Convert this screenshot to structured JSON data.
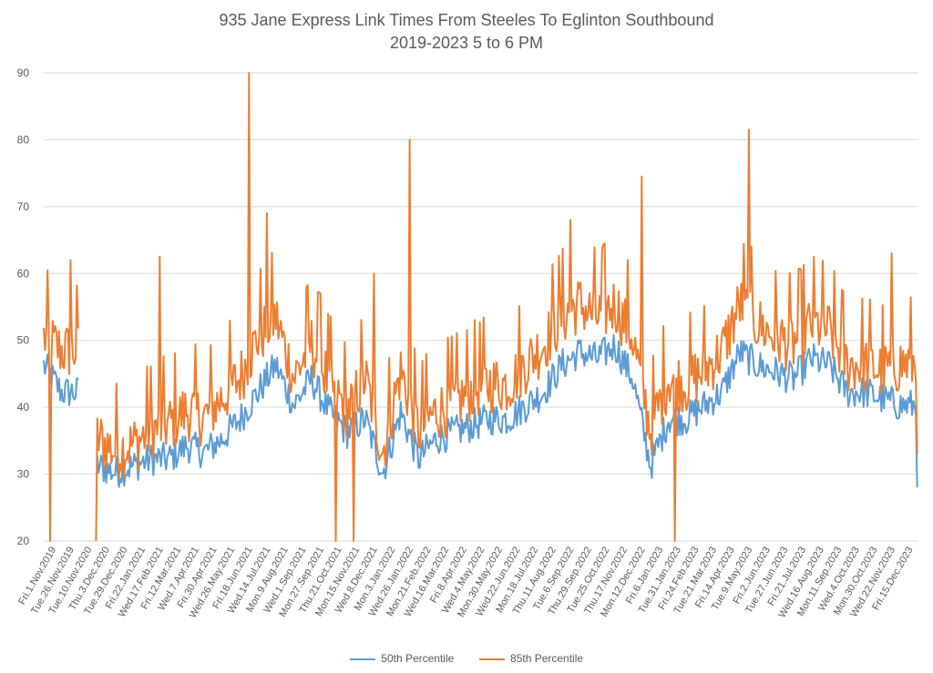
{
  "chart_data": {
    "type": "line",
    "title": "935 Jane Express Link Times From Steeles To Eglinton Southbound",
    "subtitle": "2019-2023 5 to 6 PM",
    "xlabel": "",
    "ylabel": "",
    "ylim": [
      20,
      90
    ],
    "yticks": [
      20,
      30,
      40,
      50,
      60,
      70,
      80,
      90
    ],
    "grid": true,
    "legend_position": "bottom",
    "x_tick_labels": [
      "Fri.1.Nov.2019",
      "Tue.26.Nov.2019",
      "Tue.10.Nov.2020",
      "Thu.3.Dec.2020",
      "Tue.29.Dec.2020",
      "Fri.22.Jan.2021",
      "Wed.17.Feb.2021",
      "Fri.12.Mar.2021",
      "Wed.7.Apr.2021",
      "Fri.30.Apr.2021",
      "Wed.26.May.2021",
      "Fri.18.Jun.2021",
      "Wed.14.Jul.2021",
      "Mon.9.Aug.2021",
      "Wed.1.Sep.2021",
      "Mon.27.Sep.2021",
      "Thu.21.Oct.2021",
      "Mon.15.Nov.2021",
      "Wed.8.Dec.2021",
      "Mon.3.Jan.2022",
      "Wed.26.Jan.2022",
      "Mon.21.Feb.2022",
      "Wed.16.Mar.2022",
      "Fri.8.Apr.2022",
      "Wed.4.May.2022",
      "Mon.30.May.2022",
      "Wed.22.Jun.2022",
      "Mon.18.Jul.2022",
      "Thu.11.Aug.2022",
      "Tue.6.Sep.2022",
      "Thu.29.Sep.2022",
      "Tue.25.Oct.2022",
      "Thu.17.Nov.2022",
      "Mon.12.Dec.2022",
      "Fri.6.Jan.2023",
      "Tue.31.Jan.2023",
      "Fri.24.Feb.2023",
      "Tue.21.Mar.2023",
      "Fri.14.Apr.2023",
      "Tue.9.May.2023",
      "Fri.2.Jun.2023",
      "Tue.27.Jun.2023",
      "Fri.21.Jul.2023",
      "Wed.16.Aug.2023",
      "Mon.11.Sep.2023",
      "Wed.4.Oct.2023",
      "Mon.30.Oct.2023",
      "Wed.22.Nov.2023",
      "Fri.15.Dec.2023"
    ],
    "series": [
      {
        "name": "50th Percentile",
        "color": "#5B9BD5",
        "anchor_values_per_tick": [
          46,
          42,
          null,
          31,
          30,
          31,
          32,
          32,
          34,
          33,
          35,
          38,
          42,
          46,
          40,
          44,
          39,
          36,
          38,
          30,
          39,
          32,
          35,
          36,
          37,
          38,
          38,
          40,
          42,
          46,
          48,
          47,
          49,
          44,
          31,
          38,
          38,
          40,
          42,
          48,
          46,
          45,
          44,
          47,
          46,
          42,
          42,
          41,
          40
        ],
        "end_value": 28
      },
      {
        "name": "85th Percentile",
        "color": "#ED7D31",
        "anchor_values_per_tick": [
          50,
          48,
          null,
          35,
          33,
          34,
          36,
          37,
          39,
          38,
          41,
          44,
          50,
          53,
          44,
          49,
          43,
          39,
          44,
          33,
          45,
          36,
          39,
          40,
          42,
          43,
          43,
          46,
          49,
          53,
          55,
          53,
          55,
          50,
          36,
          44,
          43,
          45,
          48,
          55,
          52,
          50,
          49,
          52,
          51,
          46,
          46,
          45,
          46
        ],
        "end_value": 33,
        "notable_peaks": [
          {
            "near": "Tue.26.Nov.2019",
            "value": 62
          },
          {
            "near": "Wed.17.Feb.2021",
            "value": 62.5
          },
          {
            "near": "Fri.18.Jun.2021",
            "value": 90
          },
          {
            "near": "Wed.14.Jul.2021",
            "value": 69
          },
          {
            "near": "Mon.27.Sep.2021",
            "value": 57
          },
          {
            "near": "Wed.8.Dec.2021",
            "value": 60
          },
          {
            "near": "Wed.26.Jan.2022",
            "value": 80
          },
          {
            "near": "Tue.6.Sep.2022",
            "value": 68
          },
          {
            "near": "Mon.12.Dec.2022",
            "value": 74.5
          },
          {
            "near": "Tue.9.May.2023",
            "value": 81.5
          },
          {
            "near": "Wed.22.Nov.2023",
            "value": 63
          }
        ],
        "notable_dips_to_axis": [
          "Fri.1.Nov.2019",
          "Tue.10.Nov.2020",
          "Thu.21.Oct.2021",
          "Mon.15.Nov.2021",
          "Tue.31.Jan.2023"
        ]
      }
    ]
  },
  "legend": {
    "items": [
      {
        "label": "50th Percentile",
        "color": "#5B9BD5"
      },
      {
        "label": "85th Percentile",
        "color": "#ED7D31"
      }
    ]
  },
  "colors": {
    "grid": "#D9D9D9",
    "text": "#595959"
  }
}
